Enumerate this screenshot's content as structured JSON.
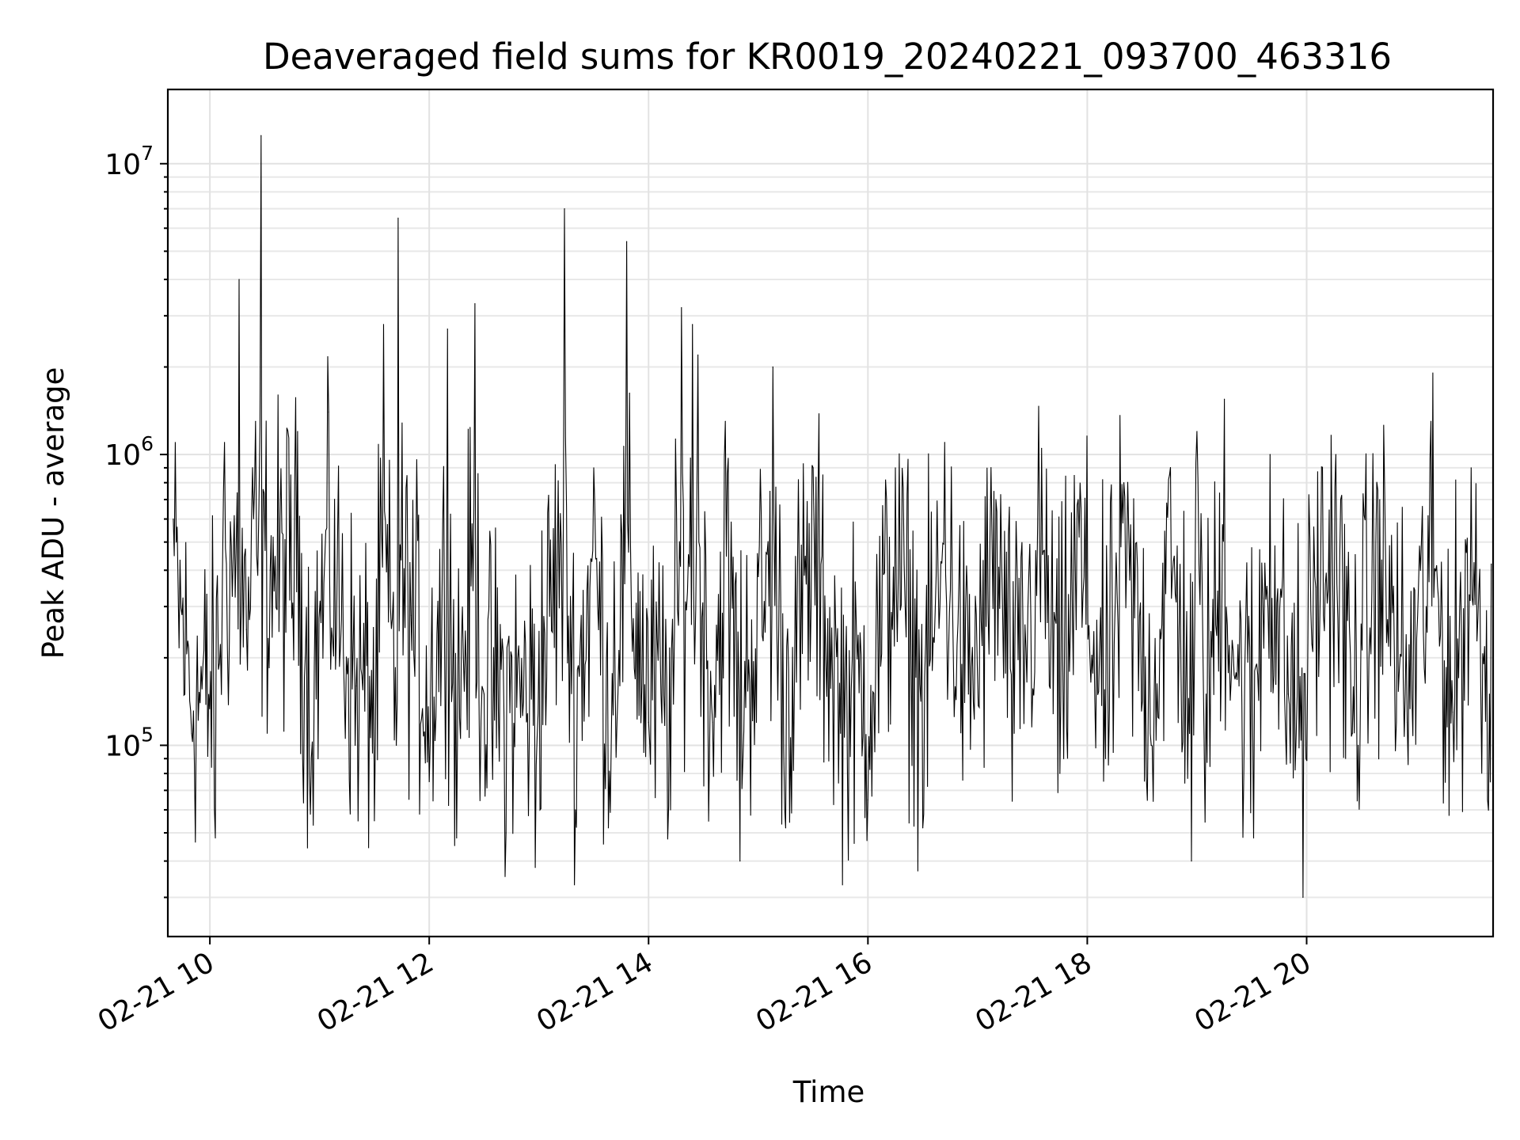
{
  "chart_data": {
    "type": "line",
    "title": "Deaveraged field sums for KR0019_20240221_093700_463316",
    "xlabel": "Time",
    "ylabel": "Peak ADU - average",
    "yscale": "log",
    "xlim": [
      "2024-02-21T09:37",
      "2024-02-21T21:42"
    ],
    "ylim": [
      22000,
      18000000
    ],
    "grid": true,
    "x_ticks": [
      {
        "value": "2024-02-21T10:00",
        "label": "02-21 10"
      },
      {
        "value": "2024-02-21T12:00",
        "label": "02-21 12"
      },
      {
        "value": "2024-02-21T14:00",
        "label": "02-21 14"
      },
      {
        "value": "2024-02-21T16:00",
        "label": "02-21 16"
      },
      {
        "value": "2024-02-21T18:00",
        "label": "02-21 18"
      },
      {
        "value": "2024-02-21T20:00",
        "label": "02-21 20"
      }
    ],
    "y_ticks": [
      {
        "value": 100000,
        "base": "10",
        "exp": "5"
      },
      {
        "value": 1000000,
        "base": "10",
        "exp": "6"
      },
      {
        "value": 10000000,
        "base": "10",
        "exp": "7"
      }
    ],
    "color": "#000000",
    "series": [
      {
        "points": [
          [
            "2024-02-21T09:40",
            600000
          ],
          [
            "2024-02-21T09:50",
            110000
          ],
          [
            "2024-02-21T10:03",
            48000
          ],
          [
            "2024-02-21T10:08",
            1100000
          ],
          [
            "2024-02-21T10:16",
            4000000
          ],
          [
            "2024-02-21T10:20",
            250000
          ],
          [
            "2024-02-21T10:25",
            1300000
          ],
          [
            "2024-02-21T10:28",
            12500000
          ],
          [
            "2024-02-21T10:33",
            400000
          ],
          [
            "2024-02-21T10:48",
            1200000
          ],
          [
            "2024-02-21T10:55",
            58000
          ],
          [
            "2024-02-21T11:05",
            1400000
          ],
          [
            "2024-02-21T11:20",
            160000
          ],
          [
            "2024-02-21T11:30",
            55000
          ],
          [
            "2024-02-21T11:35",
            2800000
          ],
          [
            "2024-02-21T11:42",
            100000
          ],
          [
            "2024-02-21T11:43",
            6500000
          ],
          [
            "2024-02-21T11:50",
            280000
          ],
          [
            "2024-02-21T12:00",
            75000
          ],
          [
            "2024-02-21T12:10",
            2700000
          ],
          [
            "2024-02-21T12:15",
            48000
          ],
          [
            "2024-02-21T12:25",
            3300000
          ],
          [
            "2024-02-21T12:30",
            150000
          ],
          [
            "2024-02-21T12:42",
            50000
          ],
          [
            "2024-02-21T12:58",
            38000
          ],
          [
            "2024-02-21T13:10",
            400000
          ],
          [
            "2024-02-21T13:14",
            7000000
          ],
          [
            "2024-02-21T13:20",
            60000
          ],
          [
            "2024-02-21T13:30",
            900000
          ],
          [
            "2024-02-21T13:38",
            52000
          ],
          [
            "2024-02-21T13:48",
            5400000
          ],
          [
            "2024-02-21T14:00",
            120000
          ],
          [
            "2024-02-21T14:12",
            60000
          ],
          [
            "2024-02-21T14:18",
            3200000
          ],
          [
            "2024-02-21T14:24",
            2800000
          ],
          [
            "2024-02-21T14:27",
            2200000
          ],
          [
            "2024-02-21T14:35",
            120000
          ],
          [
            "2024-02-21T14:42",
            1300000
          ],
          [
            "2024-02-21T14:50",
            40000
          ],
          [
            "2024-02-21T15:08",
            2000000
          ],
          [
            "2024-02-21T15:15",
            52000
          ],
          [
            "2024-02-21T15:30",
            900000
          ],
          [
            "2024-02-21T15:45",
            110000
          ],
          [
            "2024-02-21T16:00",
            65000
          ],
          [
            "2024-02-21T16:15",
            900000
          ],
          [
            "2024-02-21T16:30",
            52000
          ],
          [
            "2024-02-21T16:42",
            1100000
          ],
          [
            "2024-02-21T16:55",
            150000
          ],
          [
            "2024-02-21T17:10",
            700000
          ],
          [
            "2024-02-21T17:20",
            110000
          ],
          [
            "2024-02-21T17:35",
            1050000
          ],
          [
            "2024-02-21T17:45",
            80000
          ],
          [
            "2024-02-21T17:55",
            700000
          ],
          [
            "2024-02-21T18:10",
            90000
          ],
          [
            "2024-02-21T18:20",
            800000
          ],
          [
            "2024-02-21T18:35",
            100000
          ],
          [
            "2024-02-21T18:45",
            850000
          ],
          [
            "2024-02-21T18:57",
            40000
          ],
          [
            "2024-02-21T19:00",
            1200000
          ],
          [
            "2024-02-21T19:05",
            150000
          ],
          [
            "2024-02-21T19:15",
            1550000
          ],
          [
            "2024-02-21T19:23",
            160000
          ],
          [
            "2024-02-21T19:31",
            48000
          ],
          [
            "2024-02-21T19:36",
            320000
          ],
          [
            "2024-02-21T19:40",
            1000000
          ],
          [
            "2024-02-21T19:50",
            150000
          ],
          [
            "2024-02-21T19:58",
            30000
          ],
          [
            "2024-02-21T20:05",
            350000
          ],
          [
            "2024-02-21T20:16",
            1000000
          ],
          [
            "2024-02-21T20:25",
            110000
          ],
          [
            "2024-02-21T20:40",
            700000
          ],
          [
            "2024-02-21T20:55",
            120000
          ],
          [
            "2024-02-21T21:08",
            1300000
          ],
          [
            "2024-02-21T21:20",
            130000
          ],
          [
            "2024-02-21T21:30",
            900000
          ],
          [
            "2024-02-21T21:40",
            150000
          ],
          [
            "2024-02-21T21:41",
            420000
          ]
        ]
      }
    ]
  }
}
